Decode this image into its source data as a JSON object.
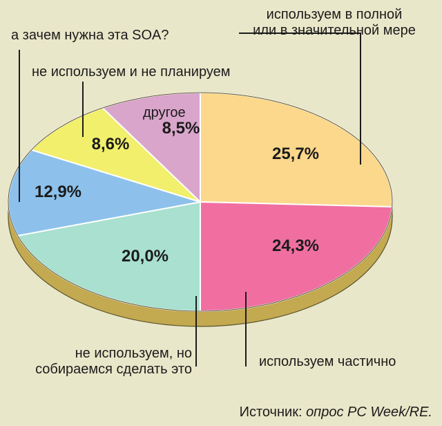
{
  "chart_data": {
    "type": "pie",
    "title": "",
    "slices": [
      {
        "label": "используем в полной или в значительной мере",
        "value_label": "25,7%",
        "value": 25.7,
        "color": "#fbd88b"
      },
      {
        "label": "используем частично",
        "value_label": "24,3%",
        "value": 24.3,
        "color": "#f06fa0"
      },
      {
        "label": "не используем, но собираемся сделать это",
        "value_label": "20,0%",
        "value": 20.0,
        "color": "#a9e0cf"
      },
      {
        "label": "а зачем нужна эта SOA?",
        "value_label": "12,9%",
        "value": 12.9,
        "color": "#8dc1ec"
      },
      {
        "label": "не используем и не планируем",
        "value_label": "8,6%",
        "value": 8.6,
        "color": "#f1ef6c"
      },
      {
        "label": "другое",
        "value_label": "8,5%",
        "value": 8.5,
        "color": "#d9a5cb"
      }
    ]
  },
  "labels": {
    "full_line1": "используем в полной",
    "full_line2": "или в значительной мере",
    "why_soa": "а зачем нужна эта SOA?",
    "not_planning": "не используем и не планируем",
    "other": "другое",
    "partial": "используем частично",
    "going_line1": "не используем, но",
    "going_line2": "собираемся сделать это"
  },
  "source": {
    "prefix": "Источник: ",
    "text": "опрос PC Week/RE."
  }
}
